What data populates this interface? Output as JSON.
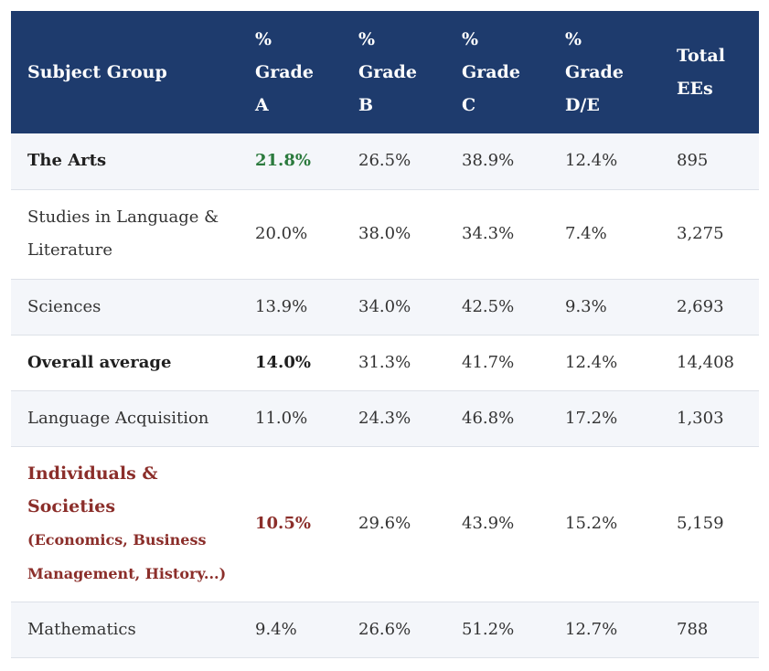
{
  "table": {
    "headers": {
      "subject": "Subject Group",
      "grade_a": [
        "%",
        "Grade",
        "A"
      ],
      "grade_b": [
        "%",
        "Grade",
        "B"
      ],
      "grade_c": [
        "%",
        "Grade",
        "C"
      ],
      "grade_de": [
        "%",
        "Grade",
        "D/E"
      ],
      "total": [
        "Total",
        "EEs"
      ]
    },
    "rows": [
      {
        "subject": "The Arts",
        "a": "21.8%",
        "b": "26.5%",
        "c": "38.9%",
        "de": "12.4%",
        "total": "895"
      },
      {
        "subject_lines": [
          "Studies in Language &",
          "Literature"
        ],
        "a": "20.0%",
        "b": "38.0%",
        "c": "34.3%",
        "de": "7.4%",
        "total": "3,275"
      },
      {
        "subject": "Sciences",
        "a": "13.9%",
        "b": "34.0%",
        "c": "42.5%",
        "de": "9.3%",
        "total": "2,693"
      },
      {
        "subject": "Overall average",
        "a": "14.0%",
        "b": "31.3%",
        "c": "41.7%",
        "de": "12.4%",
        "total": "14,408"
      },
      {
        "subject": "Language Acquisition",
        "a": "11.0%",
        "b": "24.3%",
        "c": "46.8%",
        "de": "17.2%",
        "total": "1,303"
      },
      {
        "subject_lines": [
          "Individuals &",
          "Societies"
        ],
        "subject_sub_lines": [
          "(Economics, Business",
          "Management, History...)"
        ],
        "a": "10.5%",
        "b": "29.6%",
        "c": "43.9%",
        "de": "15.2%",
        "total": "5,159"
      },
      {
        "subject": "Mathematics",
        "a": "9.4%",
        "b": "26.6%",
        "c": "51.2%",
        "de": "12.7%",
        "total": "788"
      }
    ]
  },
  "colors": {
    "header_bg": "#1e3b6d",
    "highlight_green": "#2b7a3d",
    "highlight_red": "#8b2e2a"
  }
}
